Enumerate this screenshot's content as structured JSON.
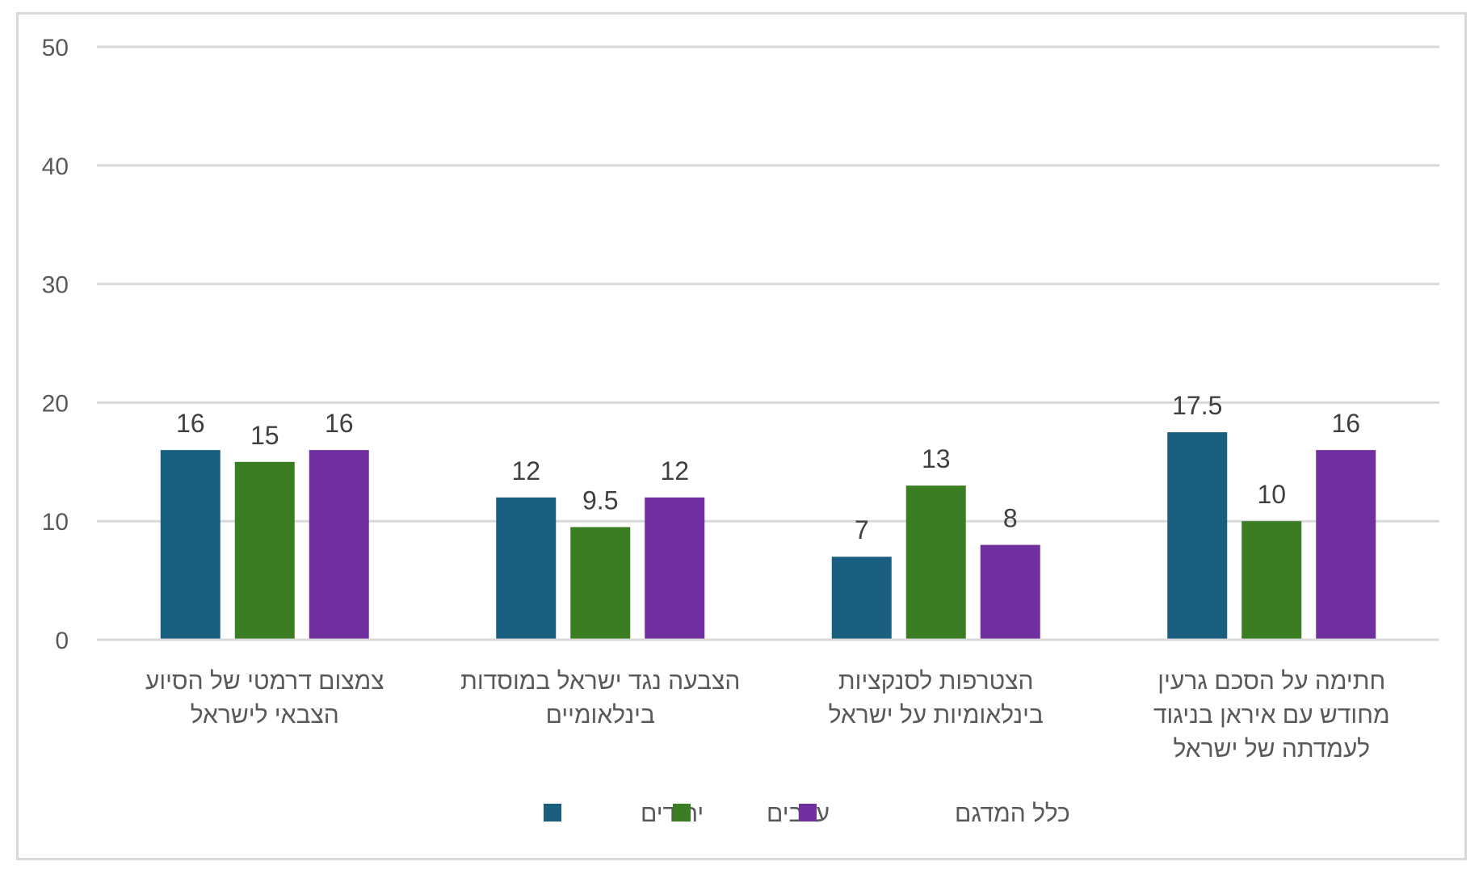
{
  "chart_data": {
    "type": "bar",
    "categories": [
      [
        "חתימה על הסכם גרעין",
        "מחודש עם איראן בניגוד",
        "לעמדתה של ישראל"
      ],
      [
        "הצטרפות לסנקציות",
        "בינלאומיות על ישראל"
      ],
      [
        "הצבעה נגד ישראל במוסדות",
        "בינלאומיים"
      ],
      [
        "צמצום דרמטי של הסיוע",
        "הצבאי לישראל"
      ]
    ],
    "series": [
      {
        "name": "יהודים",
        "color": "#1a5f80",
        "values": [
          17.5,
          7,
          12,
          16
        ]
      },
      {
        "name": "ערבים",
        "color": "#3b7d23",
        "values": [
          10,
          13,
          9.5,
          15
        ]
      },
      {
        "name": "כלל המדגם",
        "color": "#7030a0",
        "values": [
          16,
          8,
          12,
          16
        ]
      }
    ],
    "ylim": [
      0,
      50
    ],
    "yticks": [
      0,
      10,
      20,
      30,
      40,
      50
    ],
    "grid": true,
    "legend_position": "bottom"
  }
}
